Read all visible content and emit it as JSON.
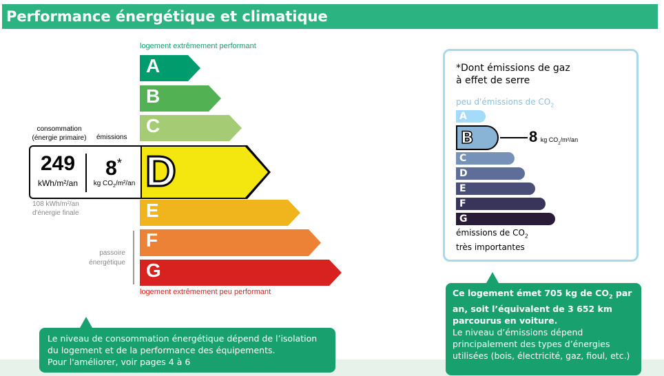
{
  "header": {
    "title": "Performance énergétique et climatique"
  },
  "energy": {
    "top_label": "logement extrêmement performant",
    "bottom_label": "logement extrêmement peu performant",
    "classes": [
      "A",
      "B",
      "C",
      "D",
      "E",
      "F",
      "G"
    ],
    "current_class": "D",
    "colors": {
      "A": "#009c6d",
      "B": "#52b153",
      "C": "#a5cc74",
      "D": "#f4e70f",
      "E": "#f0b41c",
      "F": "#eb8235",
      "G": "#d7221f"
    },
    "consumption_label": "consommation\n(énergie primaire)",
    "emissions_label": "émissions",
    "consumption_value": "249",
    "consumption_unit": "kWh/m²/an",
    "emissions_value": "8",
    "emissions_star": "*",
    "emissions_unit_pre": "kg CO",
    "emissions_unit_sub": "2",
    "emissions_unit_post": "/m²/an",
    "final_energy": "108 kWh/m²/an\nd'énergie finale",
    "passoire": "passoire\nénergétique"
  },
  "co2": {
    "title": "*Dont émissions de gaz\nà effet de serre",
    "top_label": "peu d'émissions de CO",
    "top_sub": "2",
    "classes": [
      "A",
      "B",
      "C",
      "D",
      "E",
      "F",
      "G"
    ],
    "current_class": "B",
    "value": "8",
    "unit_pre": "kg CO",
    "unit_sub": "2",
    "unit_post": "/m²/an",
    "bottom_label_1": "émissions de CO",
    "bottom_sub": "2",
    "bottom_label_2": "très importantes"
  },
  "callout_left": {
    "text": "Le niveau de consommation énergétique dépend de l’isolation du logement et de la performance des équipements.\nPour l'améliorer, voir pages 4 à 6"
  },
  "callout_right": {
    "bold_1": "Ce logement émet 705 kg de CO",
    "bold_sub": "2",
    "bold_2": " par an, soit l’équivalent de 3 652 km parcourus en voiture.",
    "text": "Le niveau d’émissions dépend principalement des types d’énergies utilisées (bois, électricité, gaz, fioul, etc.)"
  }
}
